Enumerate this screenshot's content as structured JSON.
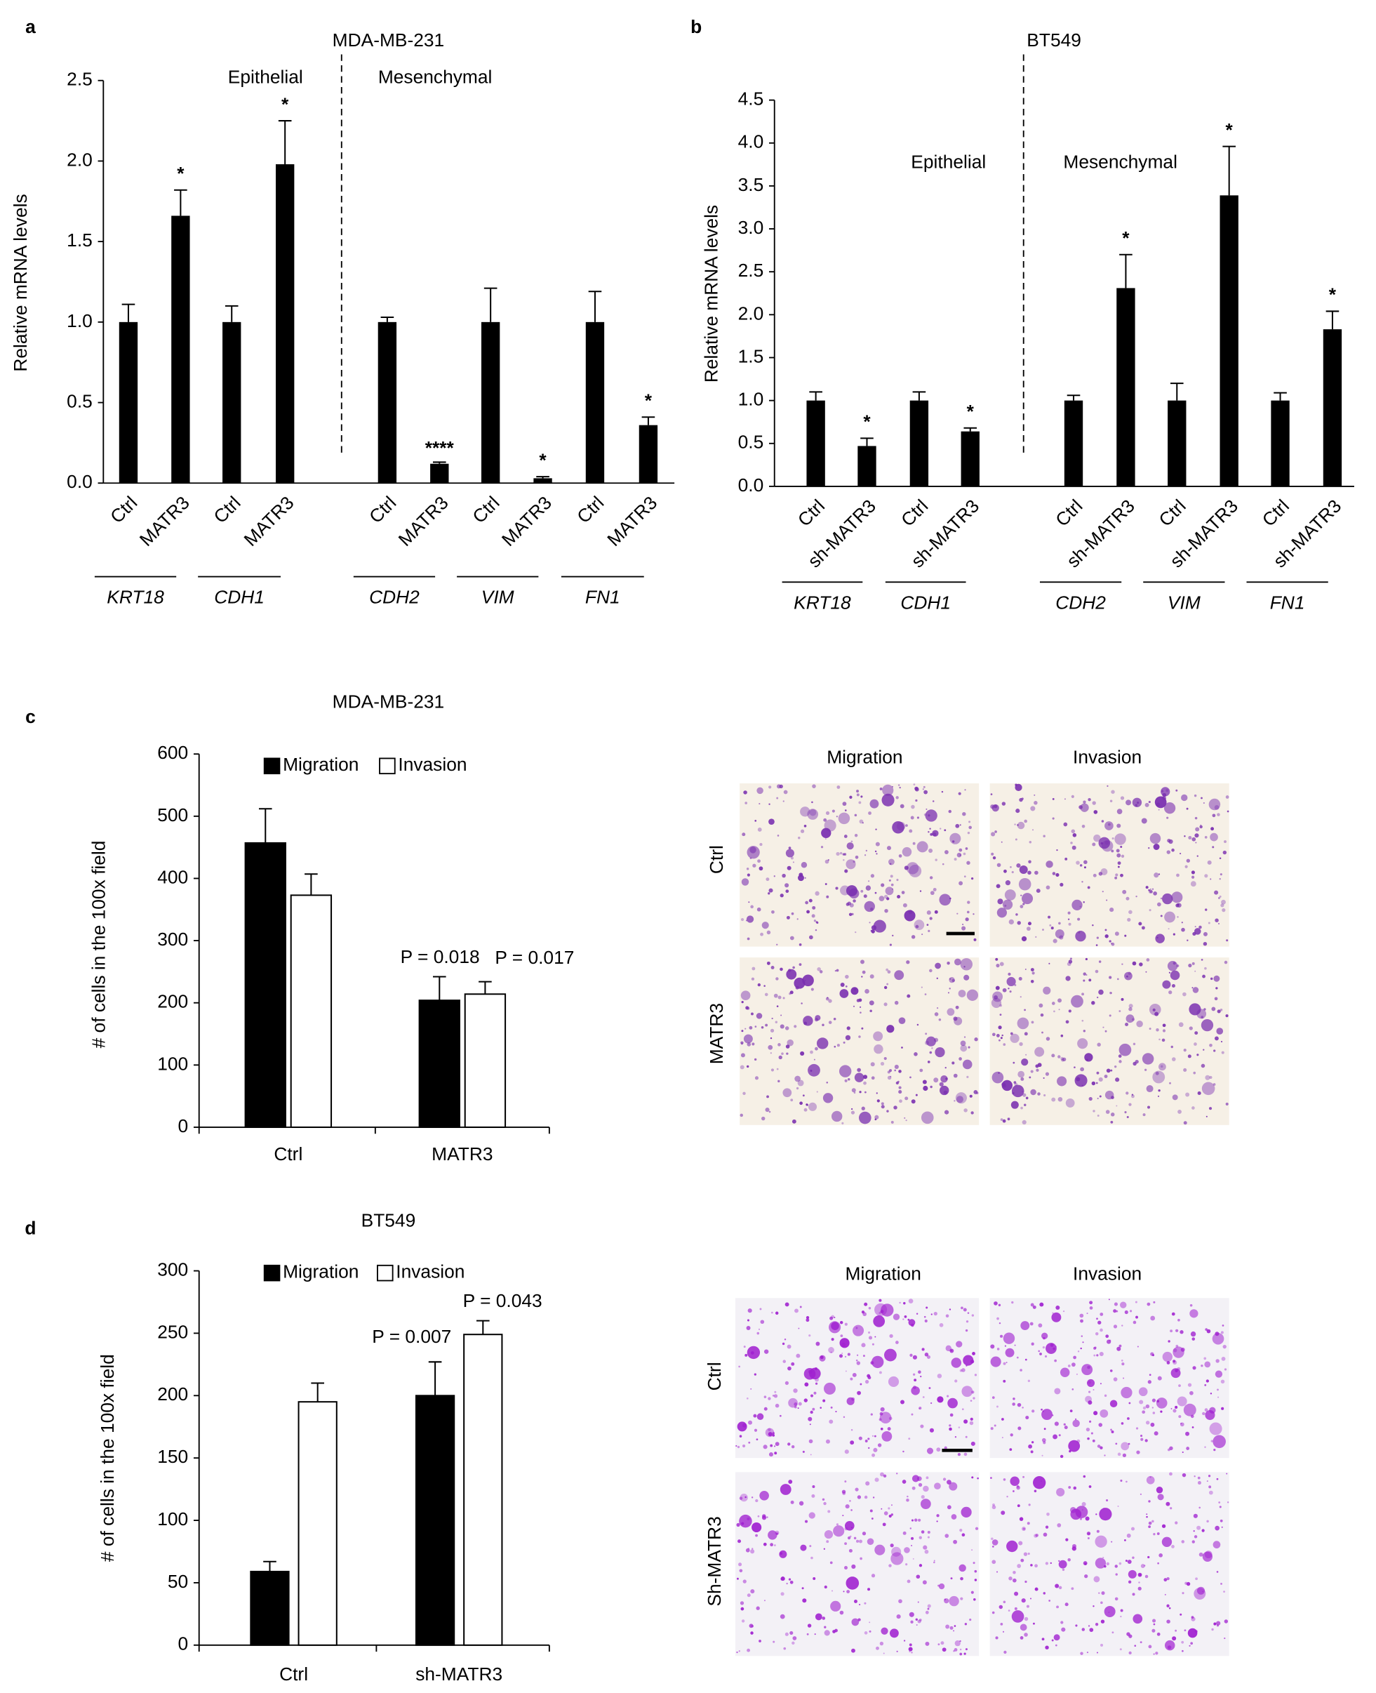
{
  "chart_data": [
    {
      "type": "bar",
      "panel": "a",
      "title": "MDA-MB-231",
      "ylabel": "Relative mRNA levels",
      "sections": [
        "Epithelial",
        "Mesenchymal"
      ],
      "categories": [
        "Ctrl",
        "MATR3",
        "Ctrl",
        "MATR3",
        "Ctrl",
        "MATR3",
        "Ctrl",
        "MATR3",
        "Ctrl",
        "MATR3"
      ],
      "groups": [
        "KRT18",
        "CDH1",
        "CDH2",
        "VIM",
        "FN1"
      ],
      "values": [
        1.0,
        1.66,
        1.0,
        1.98,
        1.0,
        0.12,
        1.0,
        0.03,
        1.0,
        0.36
      ],
      "errors": [
        0.11,
        0.16,
        0.1,
        0.27,
        0.03,
        0.01,
        0.21,
        0.01,
        0.19,
        0.05
      ],
      "annotations": [
        null,
        "*",
        null,
        "*",
        null,
        "****",
        null,
        "*",
        null,
        "*"
      ],
      "color": "#000000",
      "ylim": [
        0,
        2.5
      ],
      "yticks": [
        {
          "value": 0,
          "label": "0.0"
        },
        0.5,
        {
          "value": 1,
          "label": "1.0"
        },
        1.5,
        {
          "value": 2,
          "label": "2.0"
        },
        2.5
      ]
    },
    {
      "type": "bar",
      "panel": "b",
      "title": "BT549",
      "ylabel": "Relative mRNA levels",
      "sections": [
        "Epithelial",
        "Mesenchymal"
      ],
      "categories": [
        "Ctrl",
        "sh-MATR3",
        "Ctrl",
        "sh-MATR3",
        "Ctrl",
        "sh-MATR3",
        "Ctrl",
        "sh-MATR3",
        "Ctrl",
        "sh-MATR3"
      ],
      "groups": [
        "KRT18",
        "CDH1",
        "CDH2",
        "VIM",
        "FN1"
      ],
      "values": [
        1.0,
        0.47,
        1.0,
        0.64,
        1.0,
        2.31,
        1.0,
        3.39,
        1.0,
        1.83
      ],
      "errors": [
        0.1,
        0.09,
        0.1,
        0.04,
        0.06,
        0.39,
        0.2,
        0.57,
        0.09,
        0.21
      ],
      "annotations": [
        null,
        "*",
        null,
        "*",
        null,
        "*",
        null,
        "*",
        null,
        "*"
      ],
      "color": "#000000",
      "ylim": [
        0,
        4.5
      ],
      "yticks": [
        {
          "value": 0,
          "label": "0.0"
        },
        0.5,
        {
          "value": 1,
          "label": "1.0"
        },
        1.5,
        {
          "value": 2,
          "label": "2.0"
        },
        2.5,
        {
          "value": 3,
          "label": "3.0"
        },
        3.5,
        {
          "value": 4,
          "label": "4.0"
        },
        4.5
      ]
    },
    {
      "type": "grouped-bar",
      "panel": "c",
      "title": "MDA-MB-231",
      "ylabel": "# of cells in the 100x field",
      "categories": [
        "Ctrl",
        "MATR3"
      ],
      "series": [
        {
          "name": "Migration",
          "color": "#000000",
          "values": [
            457,
            204
          ],
          "errors": [
            55,
            38
          ],
          "annotations": [
            null,
            "P = 0.018"
          ]
        },
        {
          "name": "Invasion",
          "color": "#ffffff",
          "values": [
            373,
            214
          ],
          "errors": [
            34,
            20
          ],
          "annotations": [
            null,
            "P = 0.017"
          ]
        }
      ],
      "ylim": [
        0,
        600
      ],
      "yticks": [
        0,
        100,
        200,
        300,
        400,
        500,
        600
      ]
    },
    {
      "type": "grouped-bar",
      "panel": "d",
      "title": "BT549",
      "ylabel": "# of cells in the 100x field",
      "categories": [
        "Ctrl",
        "sh-MATR3"
      ],
      "series": [
        {
          "name": "Migration",
          "color": "#000000",
          "values": [
            59,
            200
          ],
          "errors": [
            8,
            27
          ],
          "annotations": [
            null,
            "P = 0.007"
          ]
        },
        {
          "name": "Invasion",
          "color": "#ffffff",
          "values": [
            195,
            249
          ],
          "errors": [
            15,
            11
          ],
          "annotations": [
            null,
            "P = 0.043"
          ]
        }
      ],
      "ylim": [
        0,
        300
      ],
      "yticks": [
        0,
        50,
        100,
        150,
        200,
        250,
        300
      ]
    }
  ],
  "micrographs": [
    {
      "columns": [
        "Migration",
        "Invasion"
      ],
      "rows": [
        "Ctrl",
        "MATR3"
      ]
    },
    {
      "columns": [
        "Migration",
        "Invasion"
      ],
      "rows": [
        "Ctrl",
        "Sh-MATR3"
      ]
    }
  ]
}
